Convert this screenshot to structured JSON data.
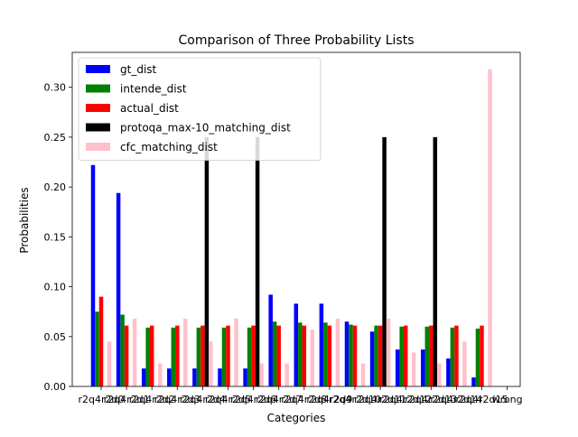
{
  "chart_data": {
    "type": "bar",
    "title": "Comparison of Three Probability Lists",
    "xlabel": "Categories",
    "ylabel": "Probabilities",
    "ylim": [
      0,
      0.335
    ],
    "yticks": [
      0.0,
      0.05,
      0.1,
      0.15,
      0.2,
      0.25,
      0.3
    ],
    "ytick_labels": [
      "0.00",
      "0.05",
      "0.10",
      "0.15",
      "0.20",
      "0.25",
      "0.30"
    ],
    "categories": [
      "r2q4r2d0",
      "r2q4r2d1",
      "r2q4r2d2",
      "r2q4r2d3",
      "r2q4r2d4",
      "r2q4r2d5",
      "r2q4r2d6",
      "r2q4r2d7",
      "r2q4r2d8",
      "r2q4r2d9",
      "r2q4r2d10",
      "r2q4r2d11",
      "r2q4r2d12",
      "r2q4r2d13",
      "r2q4r2d14",
      "r2q4r2d15",
      "wrong"
    ],
    "legend_position": "top-left",
    "series": [
      {
        "name": "gt_dist",
        "color": "#0000ff",
        "values": [
          0.222,
          0.194,
          0.018,
          0.018,
          0.018,
          0.018,
          0.018,
          0.092,
          0.083,
          0.083,
          0.065,
          0.055,
          0.037,
          0.037,
          0.028,
          0.009,
          0.0
        ]
      },
      {
        "name": "intende_dist",
        "color": "#008000",
        "values": [
          0.075,
          0.072,
          0.059,
          0.059,
          0.059,
          0.059,
          0.059,
          0.065,
          0.064,
          0.064,
          0.062,
          0.061,
          0.06,
          0.06,
          0.059,
          0.058,
          0.0
        ]
      },
      {
        "name": "actual_dist",
        "color": "#ff0000",
        "values": [
          0.09,
          0.061,
          0.061,
          0.061,
          0.061,
          0.061,
          0.061,
          0.061,
          0.061,
          0.061,
          0.061,
          0.061,
          0.061,
          0.061,
          0.061,
          0.061,
          0.0
        ]
      },
      {
        "name": "protoqa_max-10_matching_dist",
        "color": "#000000",
        "values": [
          0,
          0,
          0,
          0,
          0.25,
          0,
          0.25,
          0,
          0,
          0,
          0,
          0.25,
          0,
          0.25,
          0,
          0,
          0
        ]
      },
      {
        "name": "cfc_matching_dist",
        "color": "#ffc0cb",
        "values": [
          0.045,
          0.068,
          0.023,
          0.068,
          0.045,
          0.068,
          0.023,
          0.023,
          0.057,
          0.068,
          0.023,
          0.068,
          0.034,
          0.023,
          0.045,
          0.318,
          0.0
        ]
      }
    ]
  }
}
